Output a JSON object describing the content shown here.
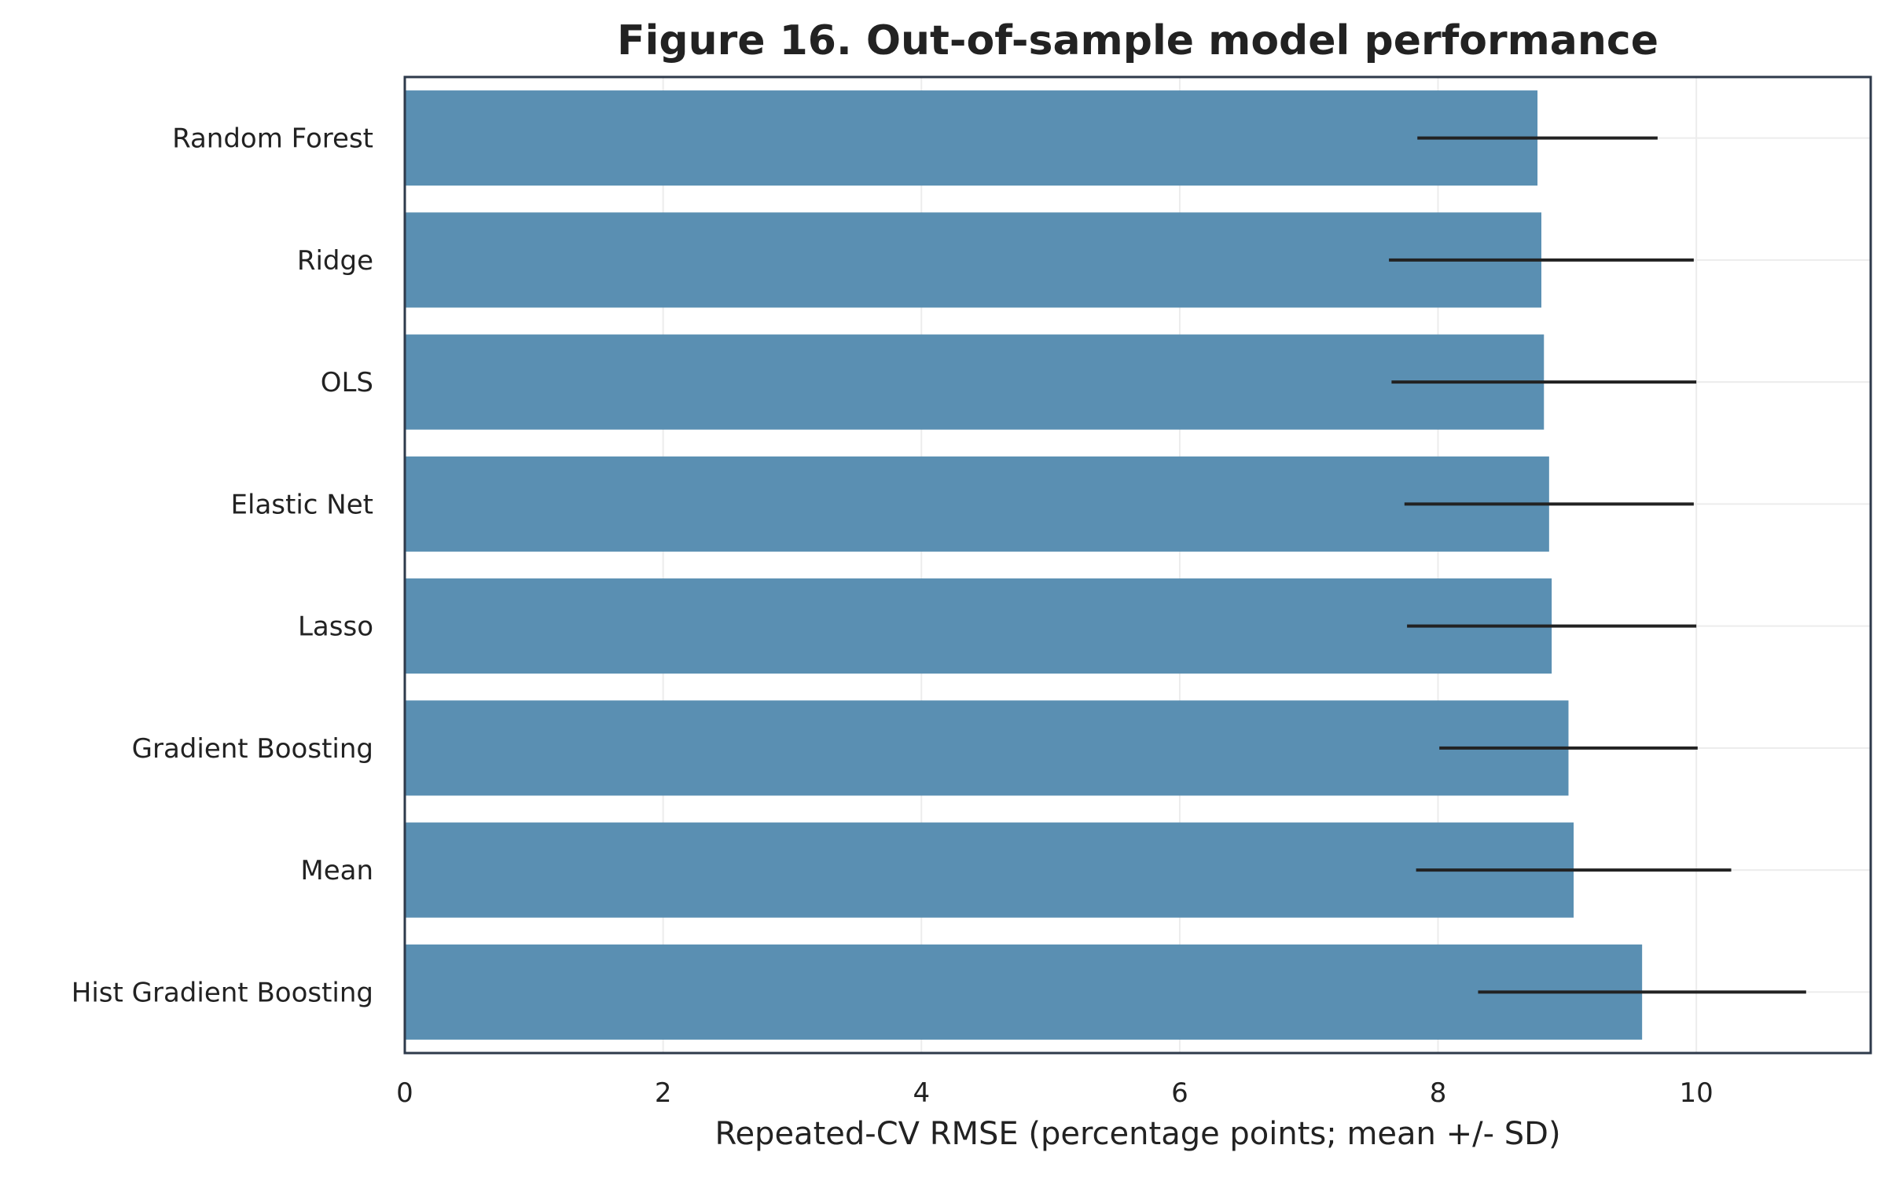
{
  "chart_data": {
    "type": "bar",
    "orientation": "horizontal",
    "title": "Figure 16. Out-of-sample model performance",
    "xlabel": "Repeated-CV RMSE (percentage points; mean +/- SD)",
    "ylabel": "",
    "xlim": [
      0,
      11.35
    ],
    "xticks": [
      0,
      2,
      4,
      6,
      8,
      10
    ],
    "grid": true,
    "categories": [
      "Random Forest",
      "Ridge",
      "OLS",
      "Elastic Net",
      "Lasso",
      "Gradient Boosting",
      "Mean",
      "Hist Gradient Boosting"
    ],
    "values": [
      8.77,
      8.8,
      8.82,
      8.86,
      8.88,
      9.01,
      9.05,
      9.58
    ],
    "sd": [
      0.93,
      1.18,
      1.18,
      1.12,
      1.12,
      1.0,
      1.22,
      1.27
    ],
    "colors": {
      "bar": "#5a8fb2",
      "error_bar": "#222222",
      "frame": "#2e3a4b",
      "grid": "#ececec"
    }
  }
}
